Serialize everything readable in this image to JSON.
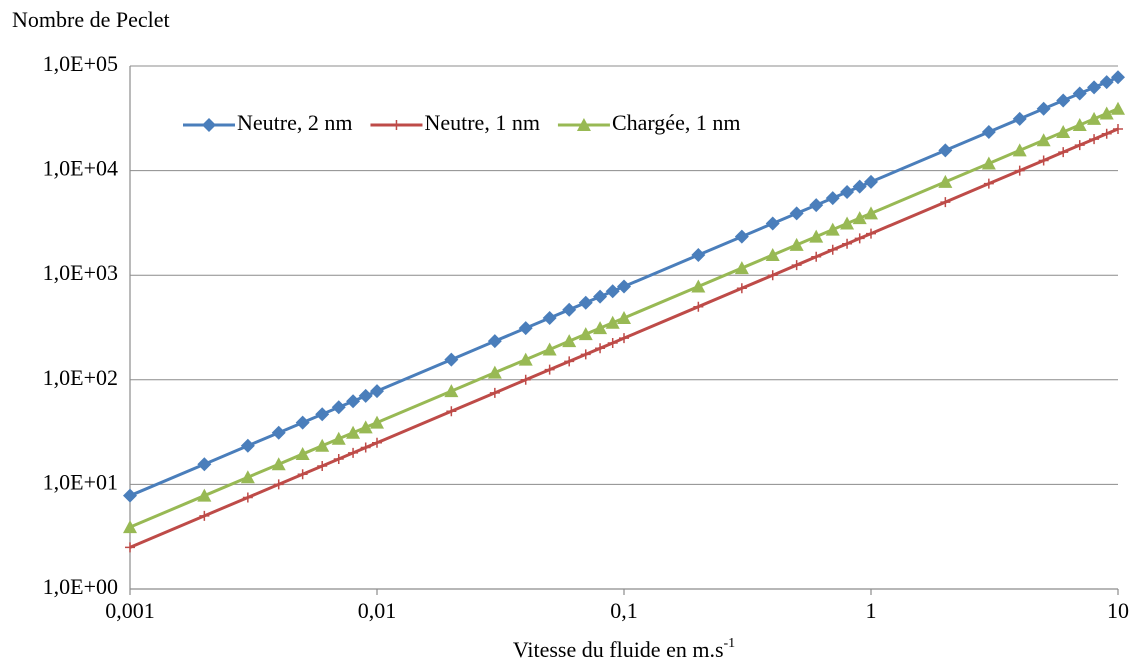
{
  "chart_data": {
    "type": "line",
    "title": "Nombre de Peclet",
    "x_label": "Vitesse du fluide en m.s",
    "x_label_superscript": "-1",
    "x": [
      0.001,
      0.002,
      0.003,
      0.004,
      0.005,
      0.006,
      0.007,
      0.008,
      0.009,
      0.01,
      0.02,
      0.03,
      0.04,
      0.05,
      0.06,
      0.07,
      0.08,
      0.09,
      0.1,
      0.2,
      0.3,
      0.4,
      0.5,
      0.6,
      0.7,
      0.8,
      0.9,
      1,
      2,
      3,
      4,
      5,
      6,
      7,
      8,
      9,
      10
    ],
    "series": [
      {
        "name": "Neutre, 2 nm",
        "color": "#4a7ebb",
        "marker": "diamond",
        "values": [
          7.8,
          15.6,
          23.4,
          31.2,
          39,
          46.8,
          54.6,
          62.4,
          70.2,
          78,
          156,
          234,
          312,
          390,
          468,
          546,
          624,
          702,
          780,
          1560,
          2340,
          3120,
          3900,
          4680,
          5460,
          6240,
          7020,
          7800,
          15600,
          23400,
          31200,
          39000,
          46800,
          54600,
          62400,
          70200,
          78000
        ]
      },
      {
        "name": "Neutre, 1 nm",
        "color": "#be4b48",
        "marker": "plus",
        "values": [
          2.5,
          5,
          7.5,
          10,
          12.5,
          15,
          17.5,
          20,
          22.5,
          25,
          50,
          75,
          100,
          125,
          150,
          175,
          200,
          225,
          250,
          500,
          750,
          1000,
          1250,
          1500,
          1750,
          2000,
          2250,
          2500,
          5000,
          7500,
          10000,
          12500,
          15000,
          17500,
          20000,
          22500,
          25000
        ]
      },
      {
        "name": "Chargée, 1 nm",
        "color": "#98b954",
        "marker": "triangle",
        "values": [
          3.9,
          7.8,
          11.7,
          15.6,
          19.5,
          23.4,
          27.3,
          31.2,
          35.1,
          39,
          78,
          117,
          156,
          195,
          234,
          273,
          312,
          351,
          390,
          780,
          1170,
          1560,
          1950,
          2340,
          2730,
          3120,
          3510,
          3900,
          7800,
          11700,
          15600,
          19500,
          23400,
          27300,
          31200,
          35100,
          39000
        ]
      }
    ],
    "xlim": [
      0.001,
      10
    ],
    "ylim": [
      1,
      100000
    ],
    "x_log": true,
    "y_log": true,
    "grid": true,
    "legend_position": "top",
    "xticks": [
      {
        "value": 0.001,
        "label": "0,001"
      },
      {
        "value": 0.01,
        "label": "0,01"
      },
      {
        "value": 0.1,
        "label": "0,1"
      },
      1,
      10
    ],
    "yticks": [
      {
        "value": 1,
        "label": "1,0E+00"
      },
      {
        "value": 10,
        "label": "1,0E+01"
      },
      {
        "value": 100,
        "label": "1,0E+02"
      },
      {
        "value": 1000,
        "label": "1,0E+03"
      },
      {
        "value": 10000,
        "label": "1,0E+04"
      },
      {
        "value": 100000,
        "label": "1,0E+05"
      }
    ]
  }
}
